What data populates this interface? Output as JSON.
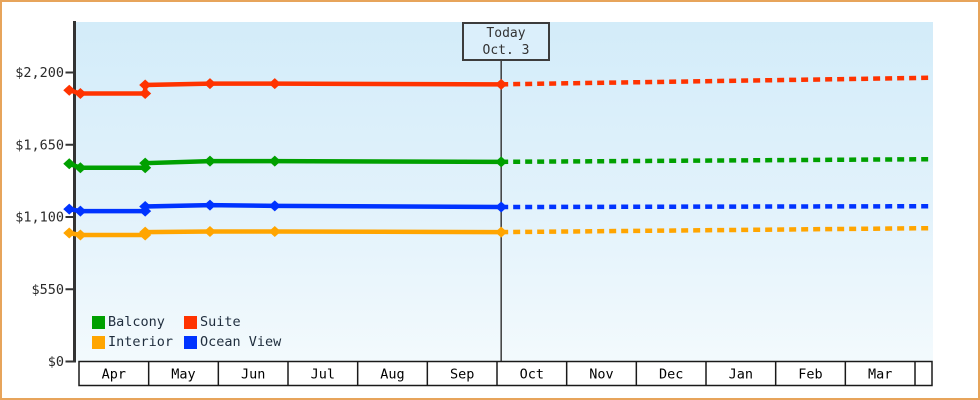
{
  "frame": {
    "border_color": "#e7a45b",
    "background": "#ffffff"
  },
  "annotation": {
    "line1": "Today",
    "line2": "Oct. 3"
  },
  "chart_data": {
    "type": "line",
    "title": "",
    "xlabel": "",
    "ylabel": "",
    "grid": false,
    "plot_background": [
      "#d3ecf9",
      "#f3fafd"
    ],
    "y_ticks": [
      {
        "label": "$0",
        "value": 0
      },
      {
        "label": "$550",
        "value": 550
      },
      {
        "label": "$1,100",
        "value": 1100
      },
      {
        "label": "$1,650",
        "value": 1650
      },
      {
        "label": "$2,200",
        "value": 2200
      }
    ],
    "ylim": [
      0,
      2590
    ],
    "x_months": [
      "Apr",
      "May",
      "Jun",
      "Jul",
      "Aug",
      "Sep",
      "Oct",
      "Nov",
      "Dec",
      "Jan",
      "Feb",
      "Mar"
    ],
    "today_marker": {
      "label_line1": "Today",
      "label_line2": "Oct. 3",
      "month_x": 6.06
    },
    "series": [
      {
        "name": "Suite",
        "color": "#ff3300",
        "points": [
          [
            -0.14,
            2065
          ],
          [
            0.02,
            2040
          ],
          [
            0.95,
            2040
          ],
          [
            0.95,
            2105
          ],
          [
            1.88,
            2115
          ],
          [
            2.81,
            2115
          ],
          [
            6.06,
            2110
          ]
        ],
        "forecast": [
          [
            6.06,
            2110
          ],
          [
            12.24,
            2160
          ]
        ]
      },
      {
        "name": "Balcony",
        "color": "#00a000",
        "points": [
          [
            -0.14,
            1505
          ],
          [
            0.02,
            1475
          ],
          [
            0.95,
            1475
          ],
          [
            0.95,
            1510
          ],
          [
            1.88,
            1525
          ],
          [
            2.81,
            1525
          ],
          [
            6.06,
            1520
          ]
        ],
        "forecast": [
          [
            6.06,
            1520
          ],
          [
            12.24,
            1540
          ]
        ]
      },
      {
        "name": "Ocean View",
        "color": "#0033ff",
        "points": [
          [
            -0.14,
            1160
          ],
          [
            0.02,
            1145
          ],
          [
            0.95,
            1145
          ],
          [
            0.95,
            1180
          ],
          [
            1.88,
            1190
          ],
          [
            2.81,
            1185
          ],
          [
            6.06,
            1176
          ]
        ],
        "forecast": [
          [
            6.06,
            1176
          ],
          [
            12.24,
            1182
          ]
        ]
      },
      {
        "name": "Interior",
        "color": "#ffa500",
        "points": [
          [
            -0.14,
            978
          ],
          [
            0.02,
            963
          ],
          [
            0.95,
            963
          ],
          [
            0.95,
            985
          ],
          [
            1.88,
            990
          ],
          [
            2.81,
            990
          ],
          [
            6.06,
            985
          ]
        ],
        "forecast": [
          [
            6.06,
            985
          ],
          [
            12.24,
            1015
          ]
        ]
      }
    ],
    "legend": {
      "position": "bottom-left",
      "items": [
        {
          "label": "Balcony",
          "color": "#00a000"
        },
        {
          "label": "Suite",
          "color": "#ff3300"
        },
        {
          "label": "Interior",
          "color": "#ffa500"
        },
        {
          "label": "Ocean View",
          "color": "#0033ff"
        }
      ]
    }
  }
}
